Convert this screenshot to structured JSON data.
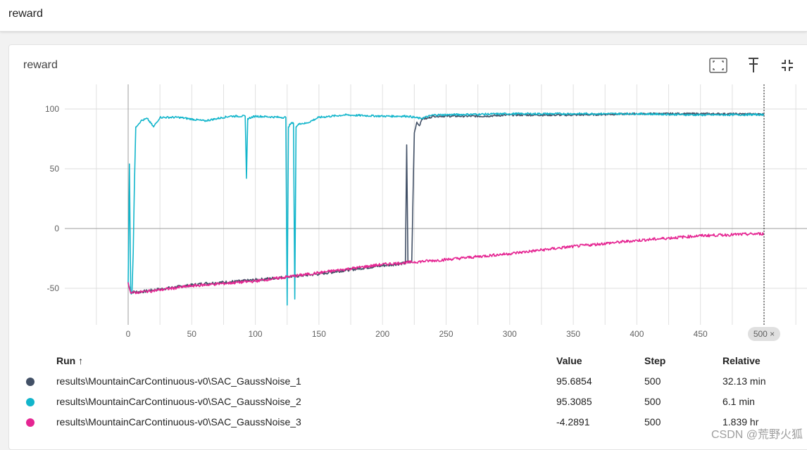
{
  "header": {
    "title": "reward"
  },
  "card": {
    "title": "reward",
    "icons": [
      "fit-domain-icon",
      "pin-icon",
      "collapse-icon"
    ]
  },
  "chart_data": {
    "type": "line",
    "title": "reward",
    "xlabel": "",
    "ylabel": "",
    "xlim": [
      0,
      500
    ],
    "ylim": [
      -80,
      120
    ],
    "x_ticks": [
      0,
      50,
      100,
      150,
      200,
      250,
      300,
      350,
      400,
      450
    ],
    "x_tick_labels": [
      "0",
      "50",
      "100",
      "150",
      "200",
      "250",
      "300",
      "350",
      "400",
      "450"
    ],
    "y_ticks": [
      100,
      50,
      0,
      -50
    ],
    "y_tick_labels": [
      "100",
      "50",
      "0",
      "-50"
    ],
    "grid": true,
    "hover_step_label": "500 ×",
    "series": [
      {
        "name": "results\\MountainCarContinuous-v0\\SAC_GaussNoise_1",
        "color": "#425066",
        "points": [
          [
            0,
            -46
          ],
          [
            2,
            -53
          ],
          [
            10,
            -53
          ],
          [
            30,
            -50
          ],
          [
            60,
            -46
          ],
          [
            90,
            -44
          ],
          [
            110,
            -42
          ],
          [
            130,
            -40
          ],
          [
            150,
            -38
          ],
          [
            170,
            -35
          ],
          [
            200,
            -31
          ],
          [
            218,
            -29
          ],
          [
            219,
            70
          ],
          [
            220,
            -29
          ],
          [
            223,
            -28
          ],
          [
            225,
            80
          ],
          [
            227,
            89
          ],
          [
            229,
            86
          ],
          [
            231,
            92
          ],
          [
            235,
            92
          ],
          [
            240,
            94
          ],
          [
            260,
            94
          ],
          [
            280,
            94
          ],
          [
            300,
            95
          ],
          [
            320,
            95
          ],
          [
            350,
            95
          ],
          [
            400,
            96
          ],
          [
            450,
            96
          ],
          [
            500,
            95.7
          ]
        ]
      },
      {
        "name": "results\\MountainCarContinuous-v0\\SAC_GaussNoise_2",
        "color": "#12b5cb",
        "points": [
          [
            0,
            -46
          ],
          [
            1,
            54
          ],
          [
            2,
            -54
          ],
          [
            3,
            -54
          ],
          [
            4,
            -20
          ],
          [
            5,
            40
          ],
          [
            6,
            85
          ],
          [
            10,
            90
          ],
          [
            15,
            92
          ],
          [
            20,
            85
          ],
          [
            25,
            93
          ],
          [
            40,
            93
          ],
          [
            60,
            90
          ],
          [
            80,
            94
          ],
          [
            92,
            94
          ],
          [
            93,
            42
          ],
          [
            94,
            92
          ],
          [
            100,
            94
          ],
          [
            120,
            93
          ],
          [
            124,
            93
          ],
          [
            125,
            -64
          ],
          [
            126,
            85
          ],
          [
            128,
            88
          ],
          [
            130,
            88
          ],
          [
            131,
            -59
          ],
          [
            132,
            85
          ],
          [
            135,
            88
          ],
          [
            140,
            88
          ],
          [
            150,
            93
          ],
          [
            170,
            95
          ],
          [
            200,
            94
          ],
          [
            220,
            94
          ],
          [
            230,
            92
          ],
          [
            240,
            95
          ],
          [
            300,
            96
          ],
          [
            400,
            96
          ],
          [
            450,
            95
          ],
          [
            500,
            95.3
          ]
        ]
      },
      {
        "name": "results\\MountainCarContinuous-v0\\SAC_GaussNoise_3",
        "color": "#e52592",
        "points": [
          [
            0,
            -45
          ],
          [
            2,
            -54
          ],
          [
            20,
            -52
          ],
          [
            50,
            -48
          ],
          [
            100,
            -44
          ],
          [
            150,
            -37
          ],
          [
            200,
            -30
          ],
          [
            250,
            -26
          ],
          [
            300,
            -21
          ],
          [
            350,
            -15
          ],
          [
            400,
            -10
          ],
          [
            450,
            -6
          ],
          [
            500,
            -4.3
          ]
        ]
      }
    ]
  },
  "table": {
    "headers": {
      "run": "Run ↑",
      "value": "Value",
      "step": "Step",
      "relative": "Relative"
    },
    "rows": [
      {
        "run": "results\\MountainCarContinuous-v0\\SAC_GaussNoise_1",
        "value": "95.6854",
        "step": "500",
        "relative": "32.13 min",
        "color": "#425066"
      },
      {
        "run": "results\\MountainCarContinuous-v0\\SAC_GaussNoise_2",
        "value": "95.3085",
        "step": "500",
        "relative": "6.1 min",
        "color": "#12b5cb"
      },
      {
        "run": "results\\MountainCarContinuous-v0\\SAC_GaussNoise_3",
        "value": "-4.2891",
        "step": "500",
        "relative": "1.839 hr",
        "color": "#e52592"
      }
    ]
  },
  "watermark": "CSDN @荒野火狐"
}
